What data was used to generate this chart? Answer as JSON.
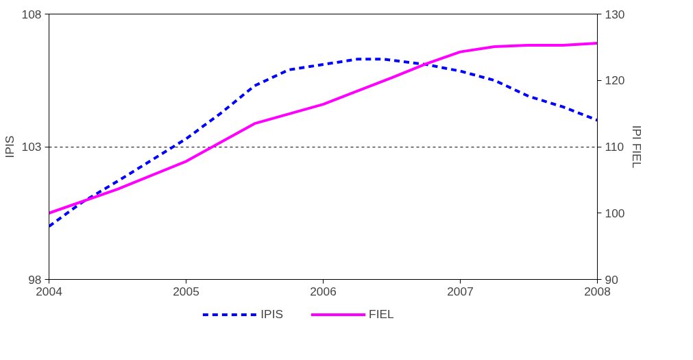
{
  "chart_data": {
    "type": "line",
    "ylabel": "IPIS",
    "y2label": "IPI FIEL",
    "xlim": [
      2004,
      2008
    ],
    "xticks": [
      2004,
      2005,
      2006,
      2007,
      2008
    ],
    "ylim": [
      98,
      108
    ],
    "yticks": [
      98,
      103,
      108
    ],
    "y2lim": [
      90,
      130
    ],
    "y2ticks": [
      90,
      100,
      110,
      120,
      130
    ],
    "grid": "y",
    "legend": "bottom",
    "marker": "none",
    "series": [
      {
        "name": "IPIS",
        "color": "#0000ff",
        "line_style": "dashed",
        "x": [
          2004,
          2004.24,
          2004.5,
          2004.75,
          2005,
          2005.25,
          2005.5,
          2005.75,
          2006,
          2006.25,
          2006.44,
          2006.75,
          2007,
          2007.25,
          2007.5,
          2007.75,
          2008
        ],
        "values": [
          100.0,
          100.9,
          101.7,
          102.5,
          103.3,
          104.25,
          105.3,
          105.9,
          106.1,
          106.3,
          106.3,
          106.1,
          105.85,
          105.5,
          104.9,
          104.5,
          104.0
        ]
      },
      {
        "name": "FIEL",
        "color": "#ff00ff",
        "line_style": "solid",
        "axis": "y2",
        "x": [
          2004,
          2004.5,
          2005,
          2005.5,
          2006,
          2006.5,
          2006.75,
          2007,
          2007.25,
          2007.5,
          2007.75,
          2008
        ],
        "values": [
          100.0,
          103.6,
          107.8,
          113.5,
          116.4,
          120.4,
          122.5,
          124.3,
          125.1,
          125.3,
          125.3,
          125.6
        ]
      }
    ]
  }
}
